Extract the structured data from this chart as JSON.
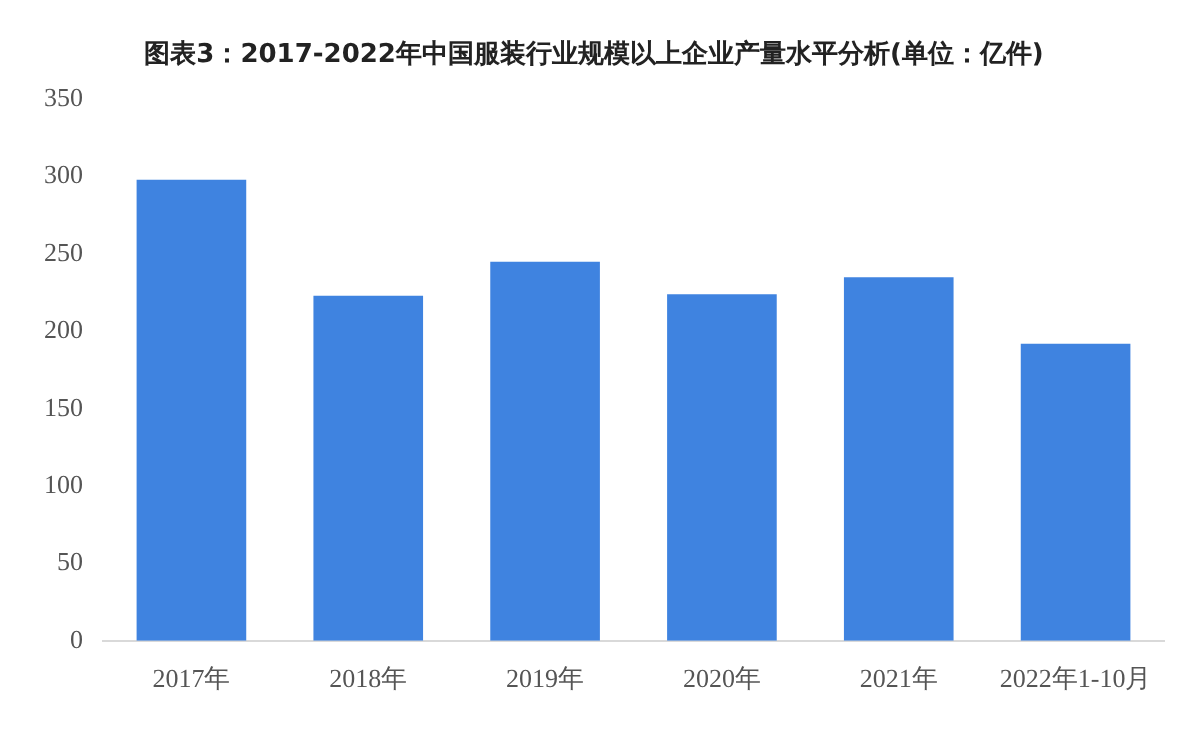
{
  "chart_data": {
    "type": "bar",
    "title": "图表3：2017-2022年中国服装行业规模以上企业产量水平分析(单位：亿件)",
    "categories": [
      "2017年",
      "2018年",
      "2019年",
      "2020年",
      "2021年",
      "2022年1-10月"
    ],
    "values": [
      298,
      223,
      245,
      224,
      235,
      192
    ],
    "color": "#3f83e0",
    "ylim": [
      0,
      350
    ],
    "yticks": [
      0,
      50,
      100,
      150,
      200,
      250,
      300,
      350
    ],
    "grid": false,
    "legend": false
  }
}
